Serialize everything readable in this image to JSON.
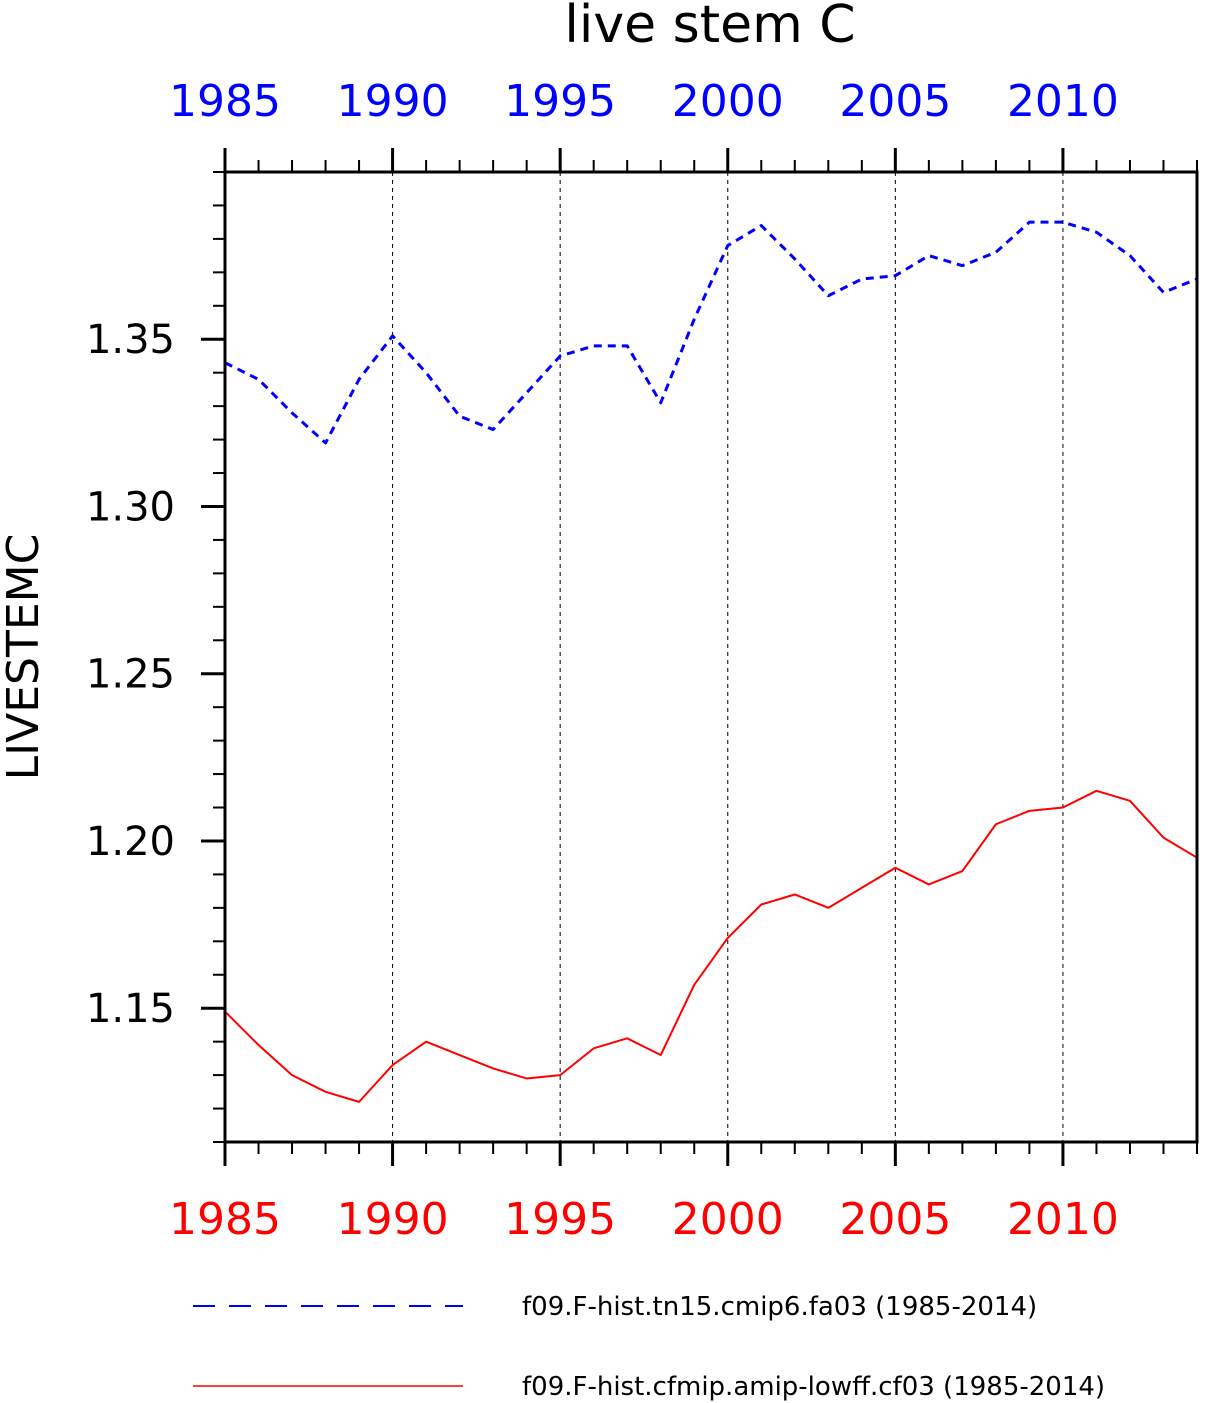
{
  "chart_data": {
    "type": "line",
    "title": "live stem C",
    "ylabel": "LIVESTEMC",
    "xlabel": "",
    "xlim": [
      1985,
      2014
    ],
    "ylim": [
      1.11,
      1.4
    ],
    "x_ticks": [
      1985,
      1990,
      1995,
      2000,
      2005,
      2010
    ],
    "x_tick_labels_top": [
      "1985",
      "1990",
      "1995",
      "2000",
      "2005",
      "2010"
    ],
    "x_tick_labels_bottom": [
      "1985",
      "1990",
      "1995",
      "2000",
      "2005",
      "2010"
    ],
    "y_ticks": [
      1.15,
      1.2,
      1.25,
      1.3,
      1.35
    ],
    "y_tick_labels": [
      "1.15",
      "1.20",
      "1.25",
      "1.30",
      "1.35"
    ],
    "grid": "vertical dashed at major x ticks",
    "legend_position": "bottom",
    "x": [
      1985,
      1986,
      1987,
      1988,
      1989,
      1990,
      1991,
      1992,
      1993,
      1994,
      1995,
      1996,
      1997,
      1998,
      1999,
      2000,
      2001,
      2002,
      2003,
      2004,
      2005,
      2006,
      2007,
      2008,
      2009,
      2010,
      2011,
      2012,
      2013,
      2014
    ],
    "series": [
      {
        "name": "f09.F-hist.tn15.cmip6.fa03 (1985-2014)",
        "color": "#0000ff",
        "style": "dashed",
        "values": [
          1.343,
          1.338,
          1.328,
          1.319,
          1.338,
          1.351,
          1.34,
          1.327,
          1.323,
          1.334,
          1.345,
          1.348,
          1.348,
          1.331,
          1.356,
          1.378,
          1.384,
          1.374,
          1.363,
          1.368,
          1.369,
          1.375,
          1.372,
          1.376,
          1.385,
          1.385,
          1.382,
          1.375,
          1.364,
          1.368
        ]
      },
      {
        "name": "f09.F-hist.cfmip.amip-lowff.cf03 (1985-2014)",
        "color": "#ff0000",
        "style": "solid",
        "values": [
          1.149,
          1.139,
          1.13,
          1.125,
          1.122,
          1.133,
          1.14,
          1.136,
          1.132,
          1.129,
          1.13,
          1.138,
          1.141,
          1.136,
          1.157,
          1.171,
          1.181,
          1.184,
          1.18,
          1.186,
          1.192,
          1.187,
          1.191,
          1.205,
          1.209,
          1.21,
          1.215,
          1.212,
          1.201,
          1.195
        ]
      }
    ],
    "top_axis_color": "#0000ff",
    "bottom_axis_color": "#ff0000"
  }
}
